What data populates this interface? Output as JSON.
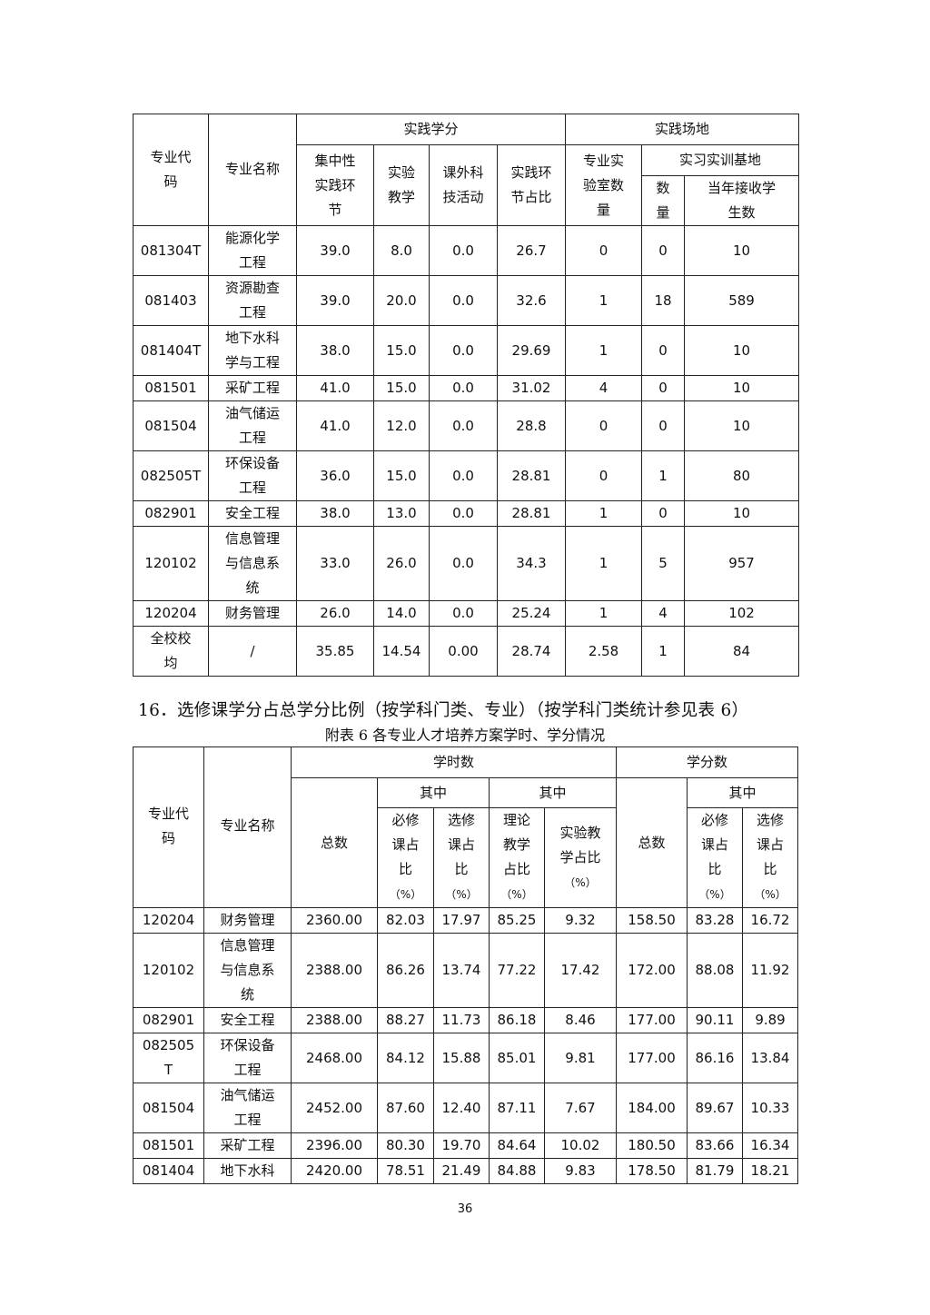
{
  "table1": {
    "headers": {
      "code": "专业代\n码",
      "name": "专业名称",
      "practice_credits": "实践学分",
      "practice_sites": "实践场地",
      "concentrated": "集中性\n实践环\n节",
      "experiment": "实验\n教学",
      "extracurricular": "课外科\n技活动",
      "practice_ratio": "实践环\n节占比",
      "labs": "专业实\n验室数\n量",
      "bases": "实习实训基地",
      "base_count": "数\n量",
      "students": "当年接收学\n生数"
    },
    "rows": [
      [
        "081304T",
        "能源化学\n工程",
        "39.0",
        "8.0",
        "0.0",
        "26.7",
        "0",
        "0",
        "10"
      ],
      [
        "081403",
        "资源勘查\n工程",
        "39.0",
        "20.0",
        "0.0",
        "32.6",
        "1",
        "18",
        "589"
      ],
      [
        "081404T",
        "地下水科\n学与工程",
        "38.0",
        "15.0",
        "0.0",
        "29.69",
        "1",
        "0",
        "10"
      ],
      [
        "081501",
        "采矿工程",
        "41.0",
        "15.0",
        "0.0",
        "31.02",
        "4",
        "0",
        "10"
      ],
      [
        "081504",
        "油气储运\n工程",
        "41.0",
        "12.0",
        "0.0",
        "28.8",
        "0",
        "0",
        "10"
      ],
      [
        "082505T",
        "环保设备\n工程",
        "36.0",
        "15.0",
        "0.0",
        "28.81",
        "0",
        "1",
        "80"
      ],
      [
        "082901",
        "安全工程",
        "38.0",
        "13.0",
        "0.0",
        "28.81",
        "1",
        "0",
        "10"
      ],
      [
        "120102",
        "信息管理\n与信息系\n统",
        "33.0",
        "26.0",
        "0.0",
        "34.3",
        "1",
        "5",
        "957"
      ],
      [
        "120204",
        "财务管理",
        "26.0",
        "14.0",
        "0.0",
        "25.24",
        "1",
        "4",
        "102"
      ],
      [
        "全校校\n均",
        "/",
        "35.85",
        "14.54",
        "0.00",
        "28.74",
        "2.58",
        "1",
        "84"
      ]
    ]
  },
  "section_heading": "16．选修课学分占总学分比例（按学科门类、专业）（按学科门类统计参见表 6）",
  "table2": {
    "caption": "附表 6  各专业人才培养方案学时、学分情况",
    "headers": {
      "code": "专业代\n码",
      "name": "专业名称",
      "hours": "学时数",
      "credits": "学分数",
      "of_which_1": "其中",
      "of_which_2": "其中",
      "of_which_3": "其中",
      "hours_total": "总数",
      "credits_total": "总数",
      "req_ratio": "必修\n课占\n比",
      "elec_ratio": "选修\n课占\n比",
      "theory_ratio": "理论\n教学\n占比",
      "lab_ratio": "实验教\n学占比",
      "cr_req_ratio": "必修\n课占\n比",
      "cr_elec_ratio": "选修\n课占\n比",
      "pct": "（%）"
    },
    "rows": [
      [
        "120204",
        "财务管理",
        "2360.00",
        "82.03",
        "17.97",
        "85.25",
        "9.32",
        "158.50",
        "83.28",
        "16.72"
      ],
      [
        "120102",
        "信息管理\n与信息系\n统",
        "2388.00",
        "86.26",
        "13.74",
        "77.22",
        "17.42",
        "172.00",
        "88.08",
        "11.92"
      ],
      [
        "082901",
        "安全工程",
        "2388.00",
        "88.27",
        "11.73",
        "86.18",
        "8.46",
        "177.00",
        "90.11",
        "9.89"
      ],
      [
        "082505\nT",
        "环保设备\n工程",
        "2468.00",
        "84.12",
        "15.88",
        "85.01",
        "9.81",
        "177.00",
        "86.16",
        "13.84"
      ],
      [
        "081504",
        "油气储运\n工程",
        "2452.00",
        "87.60",
        "12.40",
        "87.11",
        "7.67",
        "184.00",
        "89.67",
        "10.33"
      ],
      [
        "081501",
        "采矿工程",
        "2396.00",
        "80.30",
        "19.70",
        "84.64",
        "10.02",
        "180.50",
        "83.66",
        "16.34"
      ],
      [
        "081404",
        "地下水科",
        "2420.00",
        "78.51",
        "21.49",
        "84.88",
        "9.83",
        "178.50",
        "81.79",
        "18.21"
      ]
    ]
  },
  "page_number": "36"
}
